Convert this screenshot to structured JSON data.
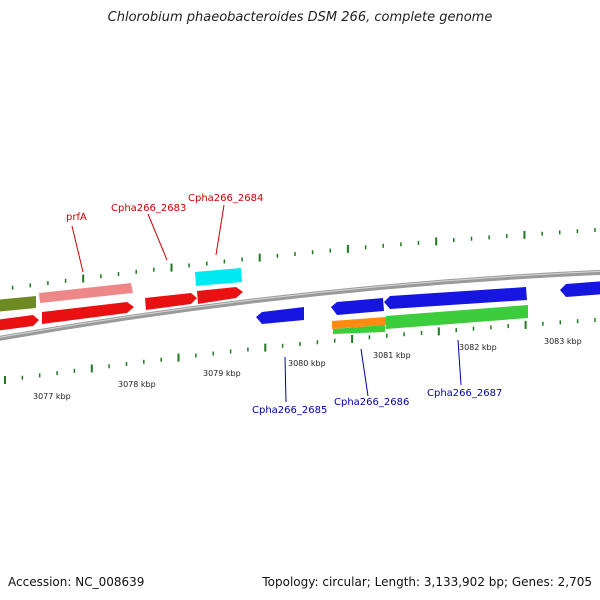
{
  "title": "Chlorobium phaeobacteroides DSM 266, complete genome",
  "footer": {
    "accession": "Accession: NC_008639",
    "summary": "Topology: circular; Length: 3,133,902 bp; Genes: 2,705"
  },
  "colors": {
    "backbone": "#8a8a8a",
    "tick": "#1f7a1f",
    "forward_label": "#cc0000",
    "reverse_label": "#0000aa",
    "red_gene": "#e81010",
    "pink_gene": "#ee8888",
    "cyan_gene": "#00e8f0",
    "olive_gene": "#6e8a22",
    "blue_gene": "#1616e0",
    "green_gene": "#3ccc3c",
    "orange_gene": "#ff8c10"
  },
  "scale_labels": [
    "3077 kbp",
    "3078 kbp",
    "3079 kbp",
    "3080 kbp",
    "3081 kbp",
    "3082 kbp",
    "3083 kbp"
  ],
  "gene_labels": {
    "prfA": "prfA",
    "g2683": "Cpha266_2683",
    "g2684": "Cpha266_2684",
    "g2685": "Cpha266_2685",
    "g2686": "Cpha266_2686",
    "g2687": "Cpha266_2687"
  }
}
